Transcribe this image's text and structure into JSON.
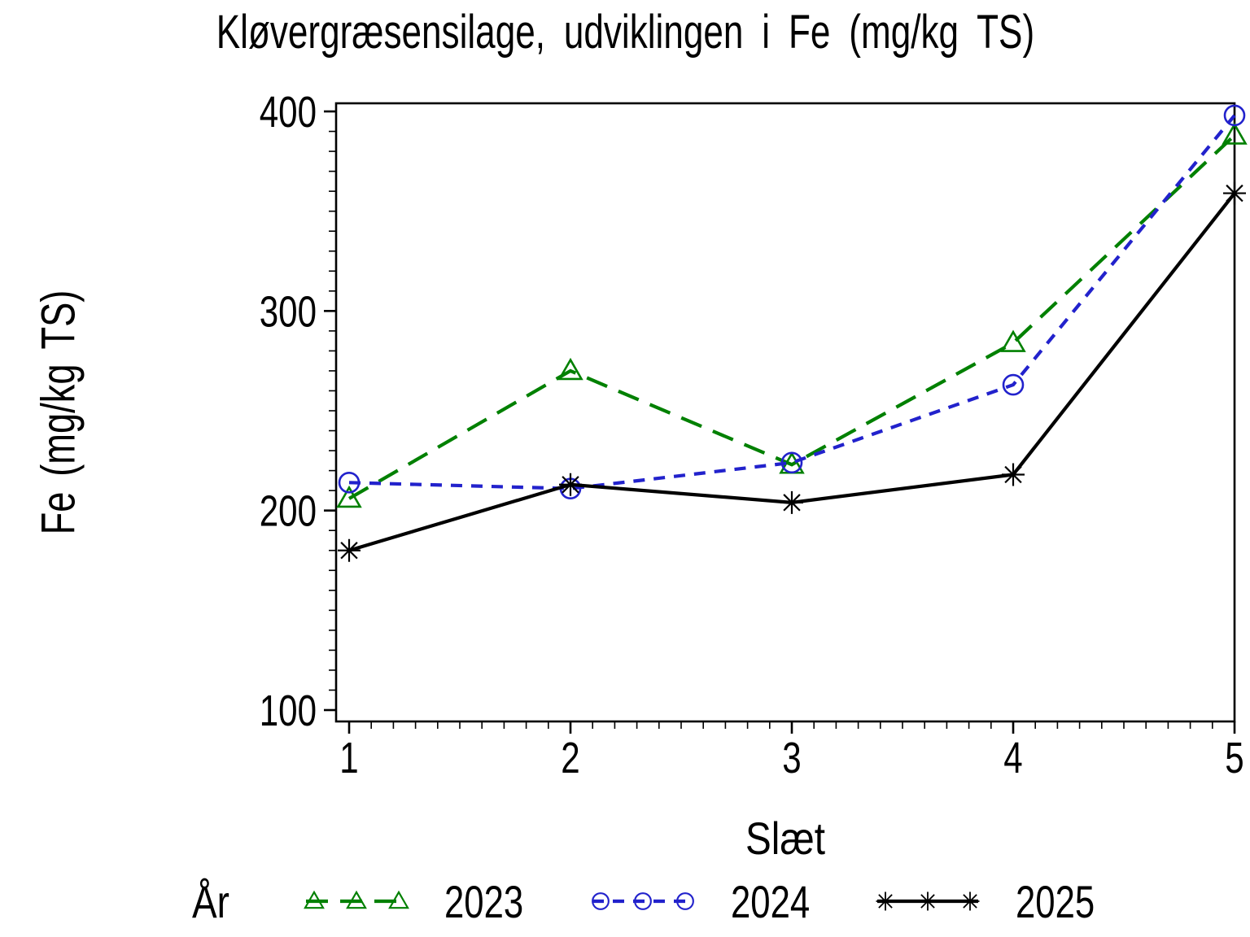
{
  "page": {
    "background": "#ffffff",
    "text_color": "#000000"
  },
  "chart_data": {
    "type": "line",
    "title": "Kløvergræsensilage, udviklingen i Fe (mg/kg TS)",
    "xlabel": "Slæt",
    "ylabel": "Fe (mg/kg TS)",
    "legend_title": "År",
    "legend_position": "bottom",
    "grid": false,
    "frame": true,
    "categories": [
      1,
      2,
      3,
      4,
      5
    ],
    "x_minor_step": 0.1,
    "yticks": [
      100,
      200,
      300,
      400
    ],
    "y_minor_step": 10,
    "ylim": [
      100,
      400
    ],
    "series": [
      {
        "name": "2023",
        "color": "#008000",
        "marker": "triangle",
        "line_style": "long-dash",
        "values": [
          206,
          270,
          223,
          284,
          388
        ]
      },
      {
        "name": "2024",
        "color": "#2222cc",
        "marker": "circle",
        "line_style": "short-dash",
        "values": [
          214,
          211,
          224,
          263,
          398
        ]
      },
      {
        "name": "2025",
        "color": "#000000",
        "marker": "star",
        "line_style": "solid",
        "values": [
          180,
          213,
          204,
          218,
          359
        ]
      }
    ]
  }
}
